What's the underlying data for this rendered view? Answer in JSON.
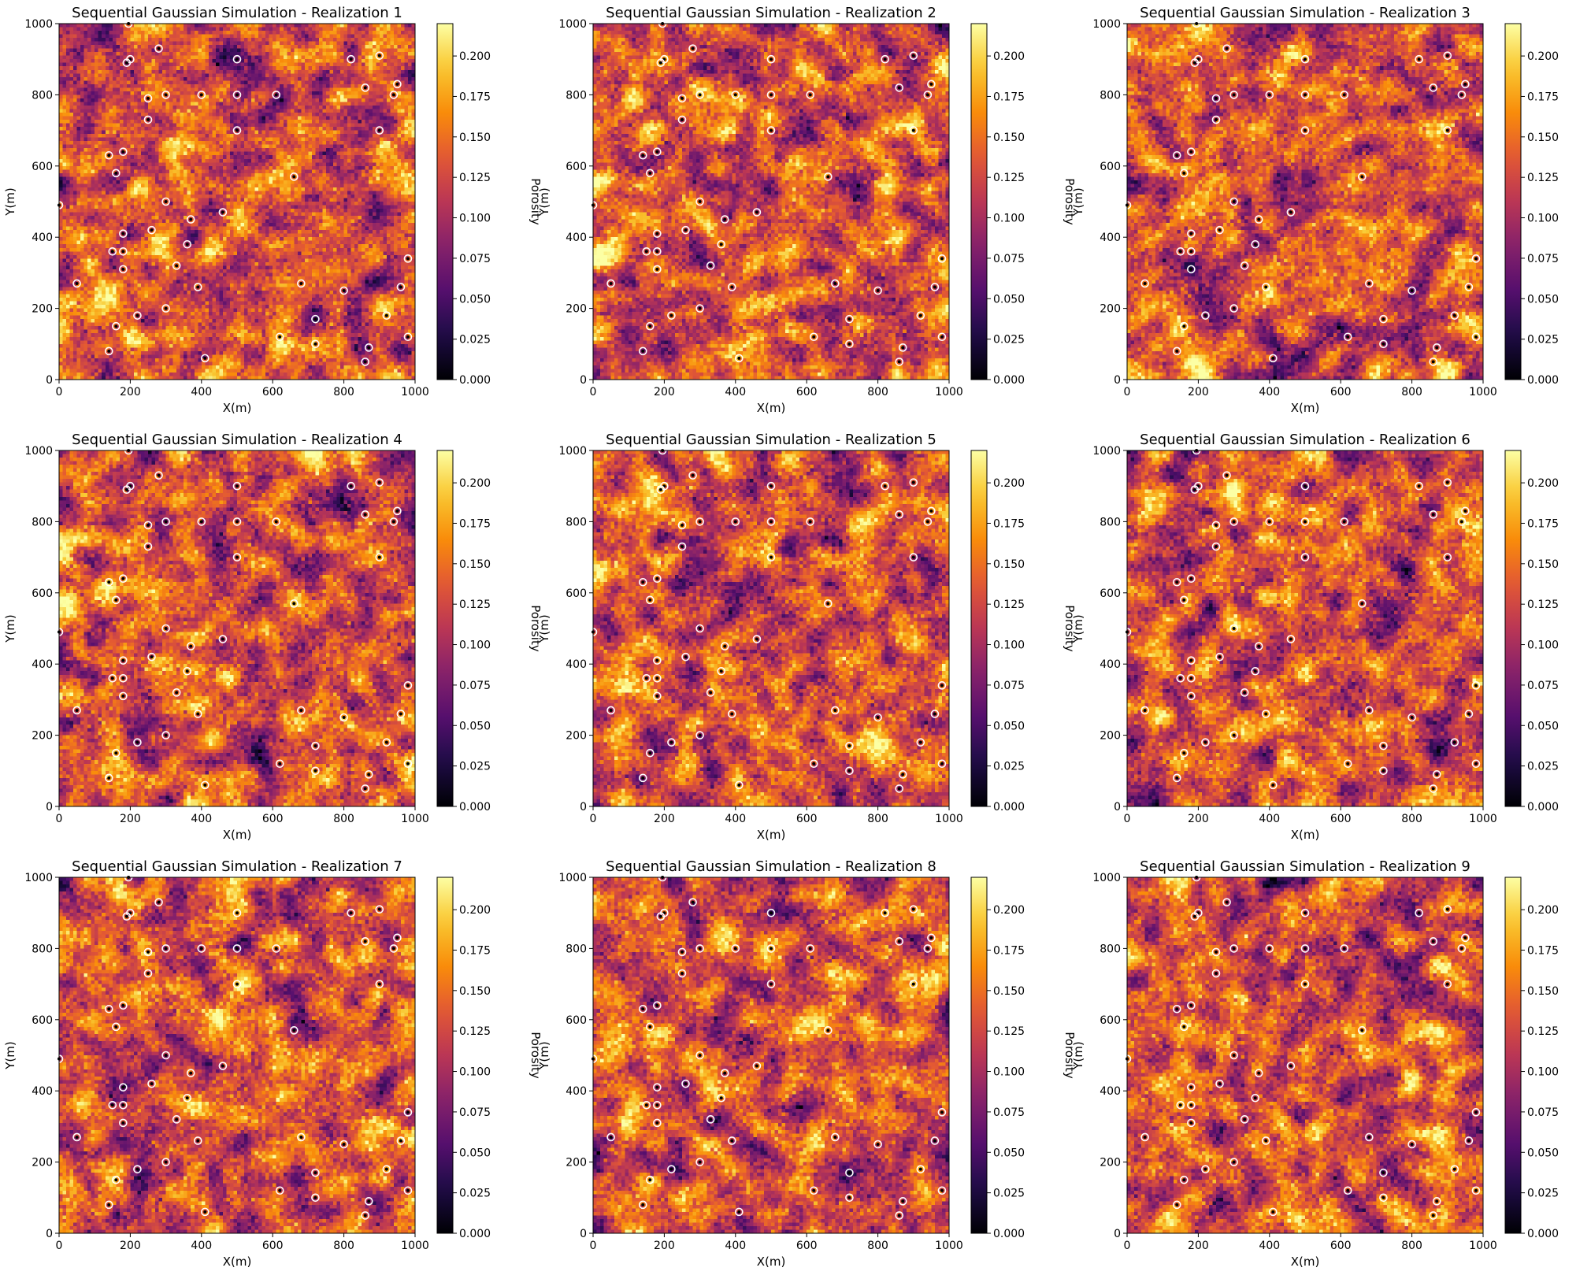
{
  "chart_data": {
    "type": "heatmap",
    "panel_count": 9,
    "grid_cells": [
      100,
      100
    ],
    "titles": [
      "Sequential Gaussian Simulation - Realization 1",
      "Sequential Gaussian Simulation - Realization 2",
      "Sequential Gaussian Simulation - Realization 3",
      "Sequential Gaussian Simulation - Realization 4",
      "Sequential Gaussian Simulation - Realization 5",
      "Sequential Gaussian Simulation - Realization 6",
      "Sequential Gaussian Simulation - Realization 7",
      "Sequential Gaussian Simulation - Realization 8",
      "Sequential Gaussian Simulation - Realization 9"
    ],
    "xlabel": "X(m)",
    "ylabel": "Y(m)",
    "xlim": [
      0,
      1000
    ],
    "ylim": [
      0,
      1000
    ],
    "x_ticks": [
      "0",
      "200",
      "400",
      "600",
      "800",
      "1000"
    ],
    "y_ticks": [
      "0",
      "200",
      "400",
      "600",
      "800",
      "1000"
    ],
    "colorbar": {
      "label": "Porosity",
      "colormap": "inferno",
      "range": [
        0.0,
        0.22
      ],
      "ticks": [
        "0.000",
        "0.025",
        "0.050",
        "0.075",
        "0.100",
        "0.125",
        "0.150",
        "0.175",
        "0.200"
      ]
    },
    "porosity_mean": 0.13,
    "porosity_std": 0.035,
    "wells": [
      [
        195,
        1000
      ],
      [
        200,
        900
      ],
      [
        190,
        890
      ],
      [
        280,
        930
      ],
      [
        500,
        900
      ],
      [
        820,
        900
      ],
      [
        900,
        910
      ],
      [
        950,
        830
      ],
      [
        940,
        800
      ],
      [
        250,
        790
      ],
      [
        300,
        800
      ],
      [
        400,
        800
      ],
      [
        500,
        800
      ],
      [
        610,
        800
      ],
      [
        860,
        820
      ],
      [
        250,
        730
      ],
      [
        500,
        700
      ],
      [
        900,
        700
      ],
      [
        140,
        630
      ],
      [
        180,
        640
      ],
      [
        160,
        580
      ],
      [
        660,
        570
      ],
      [
        0,
        490
      ],
      [
        300,
        500
      ],
      [
        460,
        470
      ],
      [
        180,
        410
      ],
      [
        260,
        420
      ],
      [
        370,
        450
      ],
      [
        180,
        360
      ],
      [
        150,
        360
      ],
      [
        360,
        380
      ],
      [
        330,
        320
      ],
      [
        180,
        310
      ],
      [
        50,
        270
      ],
      [
        390,
        260
      ],
      [
        680,
        270
      ],
      [
        960,
        260
      ],
      [
        980,
        340
      ],
      [
        800,
        250
      ],
      [
        300,
        200
      ],
      [
        220,
        180
      ],
      [
        160,
        150
      ],
      [
        720,
        170
      ],
      [
        920,
        180
      ],
      [
        140,
        80
      ],
      [
        410,
        60
      ],
      [
        620,
        120
      ],
      [
        720,
        100
      ],
      [
        870,
        90
      ],
      [
        860,
        50
      ],
      [
        980,
        120
      ]
    ]
  }
}
